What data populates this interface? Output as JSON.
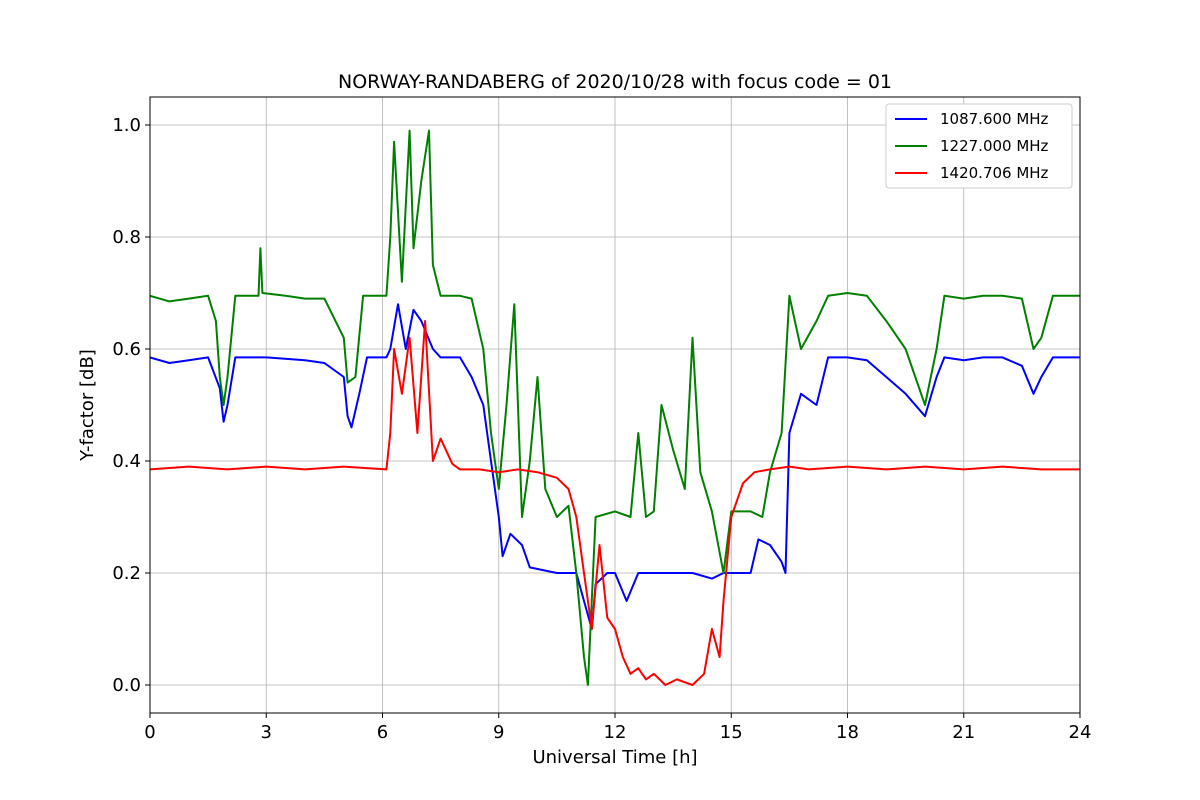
{
  "chart_data": {
    "type": "line",
    "title": "NORWAY-RANDABERG of 2020/10/28 with focus code = 01",
    "xlabel": "Universal Time [h]",
    "ylabel": "Y-factor [dB]",
    "xlim": [
      0,
      24
    ],
    "ylim": [
      -0.05,
      1.05
    ],
    "xticks": [
      0,
      3,
      6,
      9,
      12,
      15,
      18,
      21,
      24
    ],
    "yticks": [
      0.0,
      0.2,
      0.4,
      0.6,
      0.8,
      1.0
    ],
    "xtick_labels": [
      "0",
      "3",
      "6",
      "9",
      "12",
      "15",
      "18",
      "21",
      "24"
    ],
    "ytick_labels": [
      "0.0",
      "0.2",
      "0.4",
      "0.6",
      "0.8",
      "1.0"
    ],
    "grid": true,
    "legend_position": "top-right",
    "series": [
      {
        "name": "1087.600 MHz",
        "color": "#0000ff",
        "points": [
          [
            0,
            0.585
          ],
          [
            0.5,
            0.575
          ],
          [
            1.0,
            0.58
          ],
          [
            1.5,
            0.585
          ],
          [
            1.8,
            0.53
          ],
          [
            1.9,
            0.47
          ],
          [
            2.0,
            0.5
          ],
          [
            2.2,
            0.585
          ],
          [
            3.0,
            0.585
          ],
          [
            4.0,
            0.58
          ],
          [
            4.5,
            0.575
          ],
          [
            5.0,
            0.55
          ],
          [
            5.1,
            0.48
          ],
          [
            5.2,
            0.46
          ],
          [
            5.4,
            0.52
          ],
          [
            5.6,
            0.585
          ],
          [
            6.1,
            0.585
          ],
          [
            6.2,
            0.6
          ],
          [
            6.4,
            0.68
          ],
          [
            6.6,
            0.6
          ],
          [
            6.8,
            0.67
          ],
          [
            7.0,
            0.65
          ],
          [
            7.3,
            0.6
          ],
          [
            7.5,
            0.585
          ],
          [
            8.0,
            0.585
          ],
          [
            8.3,
            0.55
          ],
          [
            8.6,
            0.5
          ],
          [
            8.8,
            0.4
          ],
          [
            9.0,
            0.3
          ],
          [
            9.1,
            0.23
          ],
          [
            9.3,
            0.27
          ],
          [
            9.6,
            0.25
          ],
          [
            9.8,
            0.21
          ],
          [
            10.5,
            0.2
          ],
          [
            11.0,
            0.2
          ],
          [
            11.2,
            0.15
          ],
          [
            11.4,
            0.1
          ],
          [
            11.5,
            0.18
          ],
          [
            11.8,
            0.2
          ],
          [
            12.0,
            0.2
          ],
          [
            12.3,
            0.15
          ],
          [
            12.6,
            0.2
          ],
          [
            13.0,
            0.2
          ],
          [
            13.5,
            0.2
          ],
          [
            14.0,
            0.2
          ],
          [
            14.5,
            0.19
          ],
          [
            14.8,
            0.2
          ],
          [
            15.0,
            0.2
          ],
          [
            15.5,
            0.2
          ],
          [
            15.7,
            0.26
          ],
          [
            16.0,
            0.25
          ],
          [
            16.3,
            0.22
          ],
          [
            16.4,
            0.2
          ],
          [
            16.5,
            0.45
          ],
          [
            16.8,
            0.52
          ],
          [
            17.2,
            0.5
          ],
          [
            17.5,
            0.585
          ],
          [
            18.0,
            0.585
          ],
          [
            18.5,
            0.58
          ],
          [
            19.0,
            0.55
          ],
          [
            19.5,
            0.52
          ],
          [
            20.0,
            0.48
          ],
          [
            20.3,
            0.55
          ],
          [
            20.5,
            0.585
          ],
          [
            21.0,
            0.58
          ],
          [
            21.5,
            0.585
          ],
          [
            22.0,
            0.585
          ],
          [
            22.5,
            0.57
          ],
          [
            22.8,
            0.52
          ],
          [
            23.0,
            0.55
          ],
          [
            23.3,
            0.585
          ],
          [
            24.0,
            0.585
          ]
        ]
      },
      {
        "name": "1227.000 MHz",
        "color": "#008000",
        "points": [
          [
            0,
            0.695
          ],
          [
            0.5,
            0.685
          ],
          [
            1.0,
            0.69
          ],
          [
            1.5,
            0.695
          ],
          [
            1.7,
            0.65
          ],
          [
            1.8,
            0.55
          ],
          [
            1.9,
            0.5
          ],
          [
            2.0,
            0.55
          ],
          [
            2.2,
            0.695
          ],
          [
            2.8,
            0.695
          ],
          [
            2.85,
            0.78
          ],
          [
            2.9,
            0.7
          ],
          [
            3.5,
            0.695
          ],
          [
            4.0,
            0.69
          ],
          [
            4.5,
            0.69
          ],
          [
            5.0,
            0.62
          ],
          [
            5.1,
            0.54
          ],
          [
            5.3,
            0.55
          ],
          [
            5.5,
            0.695
          ],
          [
            6.1,
            0.695
          ],
          [
            6.2,
            0.8
          ],
          [
            6.3,
            0.97
          ],
          [
            6.5,
            0.72
          ],
          [
            6.7,
            0.99
          ],
          [
            6.8,
            0.78
          ],
          [
            7.0,
            0.9
          ],
          [
            7.2,
            0.99
          ],
          [
            7.3,
            0.75
          ],
          [
            7.5,
            0.695
          ],
          [
            8.0,
            0.695
          ],
          [
            8.3,
            0.69
          ],
          [
            8.6,
            0.6
          ],
          [
            8.8,
            0.45
          ],
          [
            9.0,
            0.35
          ],
          [
            9.2,
            0.5
          ],
          [
            9.4,
            0.68
          ],
          [
            9.6,
            0.3
          ],
          [
            9.8,
            0.4
          ],
          [
            10.0,
            0.55
          ],
          [
            10.2,
            0.35
          ],
          [
            10.5,
            0.3
          ],
          [
            10.8,
            0.32
          ],
          [
            11.0,
            0.2
          ],
          [
            11.2,
            0.05
          ],
          [
            11.3,
            0.0
          ],
          [
            11.5,
            0.3
          ],
          [
            12.0,
            0.31
          ],
          [
            12.4,
            0.3
          ],
          [
            12.6,
            0.45
          ],
          [
            12.8,
            0.3
          ],
          [
            13.0,
            0.31
          ],
          [
            13.2,
            0.5
          ],
          [
            13.5,
            0.42
          ],
          [
            13.8,
            0.35
          ],
          [
            14.0,
            0.62
          ],
          [
            14.2,
            0.38
          ],
          [
            14.5,
            0.31
          ],
          [
            14.8,
            0.2
          ],
          [
            15.0,
            0.31
          ],
          [
            15.5,
            0.31
          ],
          [
            15.8,
            0.3
          ],
          [
            16.0,
            0.38
          ],
          [
            16.3,
            0.45
          ],
          [
            16.5,
            0.695
          ],
          [
            16.8,
            0.6
          ],
          [
            17.2,
            0.65
          ],
          [
            17.5,
            0.695
          ],
          [
            18.0,
            0.7
          ],
          [
            18.5,
            0.695
          ],
          [
            19.0,
            0.65
          ],
          [
            19.5,
            0.6
          ],
          [
            20.0,
            0.5
          ],
          [
            20.3,
            0.6
          ],
          [
            20.5,
            0.695
          ],
          [
            21.0,
            0.69
          ],
          [
            21.5,
            0.695
          ],
          [
            22.0,
            0.695
          ],
          [
            22.5,
            0.69
          ],
          [
            22.8,
            0.6
          ],
          [
            23.0,
            0.62
          ],
          [
            23.3,
            0.695
          ],
          [
            24.0,
            0.695
          ]
        ]
      },
      {
        "name": "1420.706 MHz",
        "color": "#ff0000",
        "points": [
          [
            0,
            0.385
          ],
          [
            1.0,
            0.39
          ],
          [
            2.0,
            0.385
          ],
          [
            3.0,
            0.39
          ],
          [
            4.0,
            0.385
          ],
          [
            5.0,
            0.39
          ],
          [
            6.1,
            0.385
          ],
          [
            6.2,
            0.45
          ],
          [
            6.3,
            0.6
          ],
          [
            6.5,
            0.52
          ],
          [
            6.7,
            0.62
          ],
          [
            6.9,
            0.45
          ],
          [
            7.1,
            0.65
          ],
          [
            7.3,
            0.4
          ],
          [
            7.5,
            0.44
          ],
          [
            7.8,
            0.395
          ],
          [
            8.0,
            0.385
          ],
          [
            8.5,
            0.385
          ],
          [
            9.0,
            0.38
          ],
          [
            9.5,
            0.385
          ],
          [
            10.0,
            0.38
          ],
          [
            10.5,
            0.37
          ],
          [
            10.8,
            0.35
          ],
          [
            11.0,
            0.3
          ],
          [
            11.2,
            0.2
          ],
          [
            11.4,
            0.1
          ],
          [
            11.6,
            0.25
          ],
          [
            11.8,
            0.12
          ],
          [
            12.0,
            0.1
          ],
          [
            12.2,
            0.05
          ],
          [
            12.4,
            0.02
          ],
          [
            12.6,
            0.03
          ],
          [
            12.8,
            0.01
          ],
          [
            13.0,
            0.02
          ],
          [
            13.3,
            0.0
          ],
          [
            13.6,
            0.01
          ],
          [
            14.0,
            0.0
          ],
          [
            14.3,
            0.02
          ],
          [
            14.5,
            0.1
          ],
          [
            14.7,
            0.05
          ],
          [
            14.8,
            0.15
          ],
          [
            15.0,
            0.3
          ],
          [
            15.3,
            0.36
          ],
          [
            15.6,
            0.38
          ],
          [
            16.0,
            0.385
          ],
          [
            16.5,
            0.39
          ],
          [
            17.0,
            0.385
          ],
          [
            18.0,
            0.39
          ],
          [
            19.0,
            0.385
          ],
          [
            20.0,
            0.39
          ],
          [
            21.0,
            0.385
          ],
          [
            22.0,
            0.39
          ],
          [
            23.0,
            0.385
          ],
          [
            24.0,
            0.385
          ]
        ]
      }
    ]
  }
}
